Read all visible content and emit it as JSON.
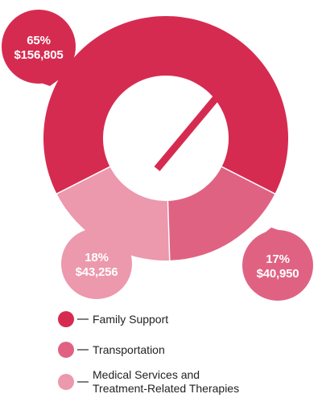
{
  "colors": {
    "family_support": "#d62b50",
    "transportation": "#e06283",
    "medical": "#ec98ad",
    "divider": "#ffffff",
    "legend_line": "#2a2a2a"
  },
  "chart_data": {
    "type": "pie",
    "variant": "donut",
    "title": "",
    "slices": [
      {
        "label": "Family Support",
        "percent": 65,
        "percent_label": "65%",
        "amount": 156805,
        "amount_label": "$156,805",
        "color": "#d62b50"
      },
      {
        "label": "Transportation",
        "percent": 17,
        "percent_label": "17%",
        "amount": 40950,
        "amount_label": "$40,950",
        "color": "#e06283"
      },
      {
        "label": "Medical Services and Treatment-Related Therapies",
        "label_lines": [
          "Medical Services and",
          "Treatment-Related Therapies"
        ],
        "percent": 18,
        "percent_label": "18%",
        "amount": 43256,
        "amount_label": "$43,256",
        "color": "#ec98ad"
      }
    ],
    "legend": {
      "placement": "bottom",
      "entries": [
        {
          "lines": [
            "Family Support"
          ],
          "color": "#d62b50"
        },
        {
          "lines": [
            "Transportation"
          ],
          "color": "#e06283"
        },
        {
          "lines": [
            "Medical Services and",
            "Treatment-Related Therapies"
          ],
          "color": "#ec98ad"
        }
      ]
    },
    "center_icon": "diagonal-bar-icon"
  }
}
